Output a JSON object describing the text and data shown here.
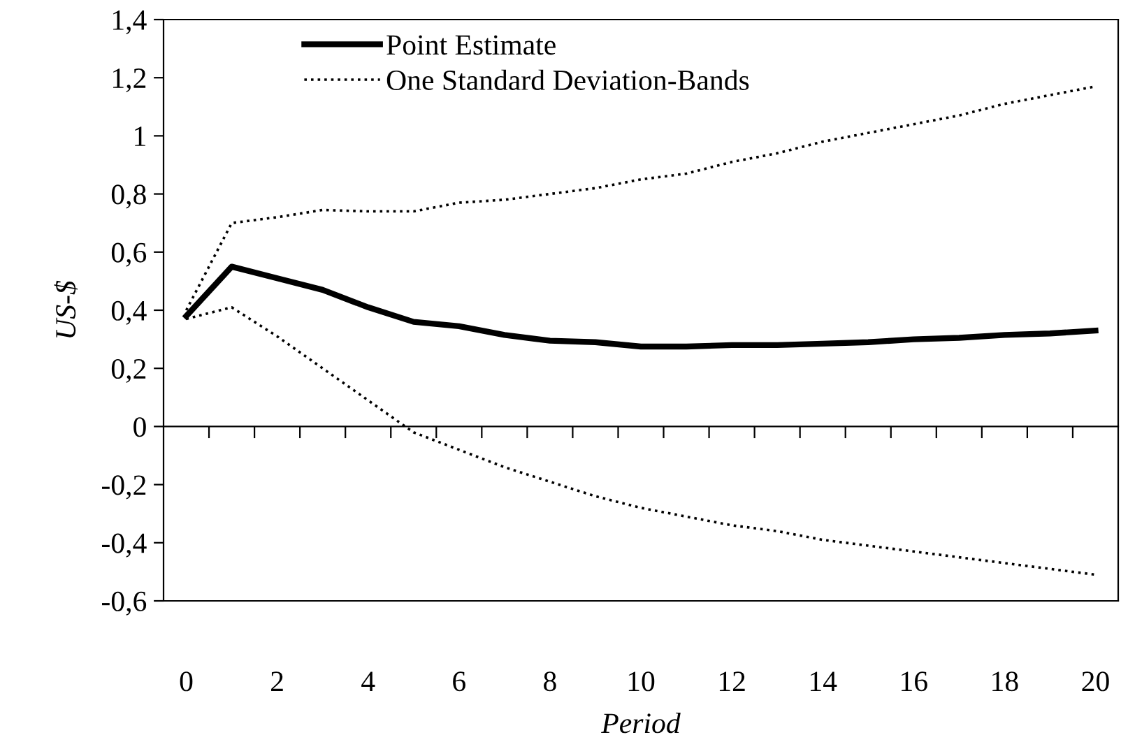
{
  "chart_data": {
    "type": "line",
    "xlabel": "Period",
    "ylabel": "US-$",
    "categories": [
      "0",
      null,
      "2",
      null,
      "4",
      null,
      "6",
      null,
      "8",
      null,
      "10",
      null,
      "12",
      null,
      "14",
      null,
      "16",
      null,
      "18",
      null,
      "20"
    ],
    "series": [
      {
        "name": "Point Estimate",
        "color": "#000000",
        "line_style": "solid",
        "values": [
          0.38,
          0.55,
          0.51,
          0.47,
          0.41,
          0.36,
          0.345,
          0.315,
          0.295,
          0.29,
          0.275,
          0.275,
          0.28,
          0.28,
          0.285,
          0.29,
          0.3,
          0.305,
          0.315,
          0.32,
          0.33
        ]
      },
      {
        "name": "One Standard Deviation-Bands",
        "color": "#000000",
        "line_style": "dotted",
        "values": [
          0.4,
          0.7,
          0.72,
          0.745,
          0.74,
          0.74,
          0.77,
          0.78,
          0.8,
          0.82,
          0.85,
          0.87,
          0.91,
          0.94,
          0.98,
          1.01,
          1.04,
          1.07,
          1.11,
          1.14,
          1.17
        ]
      },
      {
        "color": "#000000",
        "line_style": "dotted",
        "values": [
          0.37,
          0.41,
          0.31,
          0.2,
          0.09,
          -0.02,
          -0.08,
          -0.14,
          -0.19,
          -0.24,
          -0.28,
          -0.31,
          -0.34,
          -0.36,
          -0.39,
          -0.41,
          -0.43,
          -0.45,
          -0.47,
          -0.49,
          -0.51
        ]
      }
    ],
    "ylim": [
      -0.6,
      1.4
    ],
    "yticks": [
      {
        "value": -0.6,
        "label": "-0,6"
      },
      {
        "value": -0.4,
        "label": "-0,4"
      },
      {
        "value": -0.2,
        "label": "-0,2"
      },
      0,
      {
        "value": 0.2,
        "label": "0,2"
      },
      {
        "value": 0.4,
        "label": "0,4"
      },
      {
        "value": 0.6,
        "label": "0,6"
      },
      {
        "value": 0.8,
        "label": "0,8"
      },
      1,
      {
        "value": 1.2,
        "label": "1,2"
      },
      {
        "value": 1.4,
        "label": "1,4"
      }
    ],
    "legend": "top left",
    "marker": "none"
  }
}
